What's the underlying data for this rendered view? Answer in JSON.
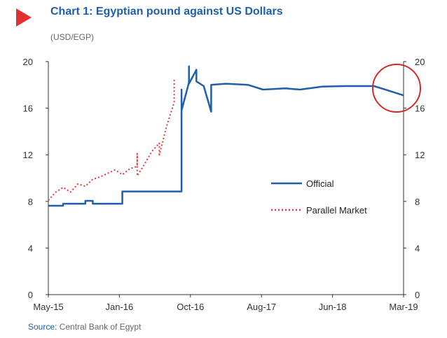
{
  "title": "Chart 1: Egyptian pound against US Dollars",
  "subtitle": "(USD/EGP)",
  "source_label": "Source:",
  "source_text": "Central Bank of Egypt",
  "colors": {
    "title": "#1f5fa8",
    "official": "#1f5fa8",
    "parallel": "#e03a3a",
    "highlight_circle": "#d12a2a",
    "arrow": "#e0312e"
  },
  "chart_data": {
    "type": "line",
    "x_ticks": [
      "May-15",
      "Jan-16",
      "Oct-16",
      "Aug-17",
      "Jun-18",
      "Mar-19"
    ],
    "y_ticks": [
      "0",
      "4",
      "8",
      "12",
      "16",
      "20"
    ],
    "ylim": [
      0,
      20
    ],
    "xlim": [
      "2015-05",
      "2019-05"
    ],
    "grid": false,
    "dual_axis": true,
    "legend_position": "center-right",
    "series": [
      {
        "name": "Official",
        "style": "solid",
        "points": [
          [
            "2015-05",
            7.63
          ],
          [
            "2015-07",
            7.63
          ],
          [
            "2015-07",
            7.8
          ],
          [
            "2015-10",
            7.8
          ],
          [
            "2015-10",
            8.05
          ],
          [
            "2015-11",
            8.05
          ],
          [
            "2015-11",
            7.8
          ],
          [
            "2016-03",
            7.8
          ],
          [
            "2016-03",
            8.85
          ],
          [
            "2016-10",
            8.85
          ],
          [
            "2016-11",
            8.85
          ],
          [
            "2016-11",
            15.5
          ],
          [
            "2016-11",
            17.6
          ],
          [
            "2016-11",
            15.8
          ],
          [
            "2016-12",
            18.2
          ],
          [
            "2016-12",
            19.6
          ],
          [
            "2016-12",
            18.1
          ],
          [
            "2017-01",
            19.3
          ],
          [
            "2017-01",
            18.3
          ],
          [
            "2017-02",
            17.9
          ],
          [
            "2017-03",
            15.7
          ],
          [
            "2017-03",
            18.0
          ],
          [
            "2017-05",
            18.1
          ],
          [
            "2017-08",
            18.0
          ],
          [
            "2017-10",
            17.6
          ],
          [
            "2018-01",
            17.7
          ],
          [
            "2018-03",
            17.6
          ],
          [
            "2018-06",
            17.85
          ],
          [
            "2018-09",
            17.9
          ],
          [
            "2018-12",
            17.9
          ],
          [
            "2019-01",
            17.9
          ],
          [
            "2019-03",
            17.5
          ],
          [
            "2019-05",
            17.1
          ]
        ]
      },
      {
        "name": "Parallel Market",
        "style": "dotted",
        "points": [
          [
            "2015-05",
            8.1
          ],
          [
            "2015-06",
            8.8
          ],
          [
            "2015-07",
            9.2
          ],
          [
            "2015-08",
            8.8
          ],
          [
            "2015-09",
            9.5
          ],
          [
            "2015-10",
            9.3
          ],
          [
            "2015-11",
            9.9
          ],
          [
            "2015-12",
            10.1
          ],
          [
            "2016-01",
            10.4
          ],
          [
            "2016-02",
            10.7
          ],
          [
            "2016-03",
            10.3
          ],
          [
            "2016-04",
            10.8
          ],
          [
            "2016-05",
            11.0
          ],
          [
            "2016-05",
            12.1
          ],
          [
            "2016-05",
            10.2
          ],
          [
            "2016-06",
            11.2
          ],
          [
            "2016-07",
            12.3
          ],
          [
            "2016-08",
            13.0
          ],
          [
            "2016-08",
            12.0
          ],
          [
            "2016-09",
            14.5
          ],
          [
            "2016-10",
            16.5
          ],
          [
            "2016-10",
            18.5
          ]
        ]
      }
    ]
  }
}
